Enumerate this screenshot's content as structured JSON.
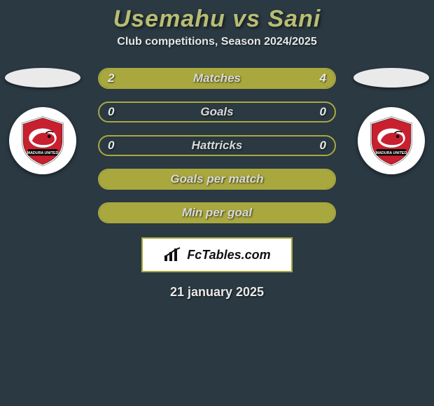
{
  "title": "Usemahu vs Sani",
  "subtitle": "Club competitions, Season 2024/2025",
  "date": "21 january 2025",
  "brand": "FcTables.com",
  "colors": {
    "background": "#2a3942",
    "accent": "#a9a83e",
    "title": "#b8bd73",
    "crest_primary": "#c8202f",
    "crest_secondary": "#000000",
    "crest_bg": "#ffffff"
  },
  "bars": [
    {
      "label": "Matches",
      "left": "2",
      "right": "4",
      "left_pct": 33,
      "right_pct": 67,
      "show_values": true
    },
    {
      "label": "Goals",
      "left": "0",
      "right": "0",
      "left_pct": 0,
      "right_pct": 0,
      "show_values": true
    },
    {
      "label": "Hattricks",
      "left": "0",
      "right": "0",
      "left_pct": 0,
      "right_pct": 0,
      "show_values": true
    },
    {
      "label": "Goals per match",
      "left": "",
      "right": "",
      "left_pct": 100,
      "right_pct": 0,
      "show_values": false,
      "full": true
    },
    {
      "label": "Min per goal",
      "left": "",
      "right": "",
      "left_pct": 100,
      "right_pct": 0,
      "show_values": false,
      "full": true
    }
  ]
}
